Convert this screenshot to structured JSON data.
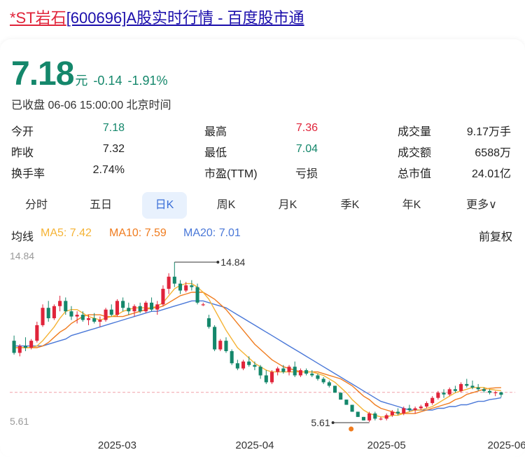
{
  "header": {
    "title_st": "*ST岩石",
    "title_rest": "[600696]A股实时行情 - 百度股市通"
  },
  "quote": {
    "price": "7.18",
    "unit": "元",
    "change": "-0.14",
    "change_pct": "-1.91%",
    "status": "已收盘 06-06 15:00:00 北京时间"
  },
  "stats": [
    {
      "l1": "今开",
      "v1": "7.18",
      "l2": "最高",
      "v2": "7.36",
      "l3": "成交量",
      "v3": "9.17万手"
    },
    {
      "l1": "昨收",
      "v1": "7.32",
      "l2": "最低",
      "v2": "7.04",
      "l3": "成交额",
      "v3": "6588万"
    },
    {
      "l1": "换手率",
      "v1": "2.74%",
      "l2": "市盈(TTM)",
      "v2": "亏损",
      "l3": "总市值",
      "v3": "24.01亿"
    }
  ],
  "tabs": [
    "分时",
    "五日",
    "日K",
    "周K",
    "月K",
    "季K",
    "年K",
    "更多∨"
  ],
  "active_tab": "日K",
  "ma": {
    "label": "均线",
    "ma5": "MA5: 7.42",
    "ma10": "MA10: 7.59",
    "ma20": "MA20: 7.01",
    "adjust": "前复权"
  },
  "colors": {
    "up": "#e0243a",
    "down": "#14876b",
    "ma5": "#f5b335",
    "ma10": "#f07c1f",
    "ma20": "#4a78d8"
  },
  "chart_data": {
    "type": "candlestick",
    "y_axis_top_label": "14.84",
    "y_axis_bottom_label": "5.61",
    "ylim": [
      5.61,
      14.84
    ],
    "max_annotation": "14.84",
    "min_annotation": "5.61",
    "reference_price": 7.32,
    "x_labels": [
      {
        "label": "2025-03",
        "index": 18
      },
      {
        "label": "2025-04",
        "index": 42
      },
      {
        "label": "2025-05",
        "index": 65
      },
      {
        "label": "2025-06",
        "index": 86
      }
    ],
    "ohlc": [
      [
        10.3,
        10.6,
        9.5,
        9.6
      ],
      [
        9.6,
        10.1,
        9.4,
        10.0
      ],
      [
        10.0,
        10.5,
        9.7,
        9.9
      ],
      [
        9.9,
        10.4,
        9.8,
        10.3
      ],
      [
        10.3,
        11.4,
        10.2,
        11.2
      ],
      [
        11.2,
        12.4,
        11.1,
        12.2
      ],
      [
        12.2,
        12.6,
        11.4,
        11.6
      ],
      [
        11.6,
        12.4,
        11.5,
        12.3
      ],
      [
        12.3,
        12.9,
        12.0,
        12.6
      ],
      [
        12.6,
        12.8,
        11.8,
        12.0
      ],
      [
        12.0,
        12.3,
        11.5,
        11.7
      ],
      [
        11.7,
        12.0,
        11.3,
        11.8
      ],
      [
        11.8,
        12.0,
        11.4,
        11.5
      ],
      [
        11.5,
        11.8,
        11.2,
        11.6
      ],
      [
        11.6,
        11.9,
        11.3,
        11.4
      ],
      [
        11.4,
        11.7,
        11.1,
        11.5
      ],
      [
        11.5,
        12.2,
        11.4,
        12.1
      ],
      [
        12.1,
        12.4,
        11.7,
        11.8
      ],
      [
        11.8,
        12.7,
        11.7,
        12.6
      ],
      [
        12.6,
        12.8,
        12.0,
        12.2
      ],
      [
        12.2,
        12.5,
        11.8,
        12.0
      ],
      [
        12.0,
        12.4,
        11.7,
        12.3
      ],
      [
        12.3,
        12.5,
        11.9,
        12.0
      ],
      [
        12.0,
        12.6,
        11.9,
        12.5
      ],
      [
        12.5,
        12.8,
        12.0,
        12.1
      ],
      [
        12.1,
        12.6,
        11.8,
        12.4
      ],
      [
        12.4,
        13.5,
        12.3,
        13.3
      ],
      [
        13.3,
        14.2,
        13.0,
        14.0
      ],
      [
        14.0,
        14.84,
        13.4,
        13.6
      ],
      [
        13.6,
        13.8,
        13.0,
        13.2
      ],
      [
        13.2,
        13.7,
        13.1,
        13.5
      ],
      [
        13.5,
        13.8,
        13.2,
        13.4
      ],
      [
        13.4,
        13.6,
        12.4,
        12.5
      ],
      [
        12.4,
        12.5,
        12.3,
        12.4
      ],
      [
        11.6,
        11.8,
        11.0,
        11.1
      ],
      [
        11.1,
        11.2,
        9.7,
        9.8
      ],
      [
        9.8,
        10.4,
        9.7,
        10.3
      ],
      [
        10.3,
        10.5,
        9.6,
        9.7
      ],
      [
        9.7,
        9.8,
        8.9,
        9.0
      ],
      [
        9.0,
        9.2,
        8.6,
        8.7
      ],
      [
        8.7,
        9.2,
        8.6,
        9.1
      ],
      [
        9.1,
        9.4,
        8.8,
        8.9
      ],
      [
        8.9,
        9.1,
        8.6,
        8.8
      ],
      [
        8.8,
        8.9,
        8.1,
        8.3
      ],
      [
        8.3,
        8.6,
        7.8,
        7.9
      ],
      [
        7.9,
        8.6,
        7.8,
        8.5
      ],
      [
        8.5,
        8.8,
        8.3,
        8.7
      ],
      [
        8.7,
        8.9,
        8.4,
        8.5
      ],
      [
        8.5,
        8.9,
        8.3,
        8.8
      ],
      [
        8.8,
        9.1,
        8.2,
        8.3
      ],
      [
        8.3,
        8.7,
        8.2,
        8.6
      ],
      [
        8.6,
        8.7,
        8.3,
        8.4
      ],
      [
        8.4,
        8.6,
        8.2,
        8.3
      ],
      [
        8.3,
        8.4,
        8.0,
        8.1
      ],
      [
        8.1,
        8.2,
        7.8,
        7.9
      ],
      [
        7.9,
        8.0,
        7.6,
        7.7
      ],
      [
        7.7,
        7.7,
        7.3,
        7.3
      ],
      [
        7.3,
        7.3,
        6.9,
        6.9
      ],
      [
        6.9,
        6.9,
        6.6,
        6.6
      ],
      [
        6.6,
        6.6,
        6.2,
        6.2
      ],
      [
        6.2,
        6.2,
        5.9,
        5.9
      ],
      [
        5.9,
        5.9,
        5.7,
        5.7
      ],
      [
        5.7,
        6.2,
        5.61,
        6.1
      ],
      [
        6.1,
        6.2,
        5.7,
        5.8
      ],
      [
        5.8,
        5.9,
        5.7,
        5.8
      ],
      [
        5.8,
        6.1,
        5.7,
        6.0
      ],
      [
        6.0,
        6.3,
        5.9,
        6.2
      ],
      [
        6.2,
        6.4,
        6.0,
        6.1
      ],
      [
        6.1,
        6.5,
        6.0,
        6.4
      ],
      [
        6.4,
        6.6,
        6.2,
        6.3
      ],
      [
        6.3,
        6.5,
        6.1,
        6.4
      ],
      [
        6.4,
        6.6,
        6.3,
        6.5
      ],
      [
        6.5,
        6.8,
        6.4,
        6.7
      ],
      [
        6.7,
        7.1,
        6.6,
        7.0
      ],
      [
        7.0,
        7.4,
        6.9,
        7.3
      ],
      [
        7.3,
        7.5,
        7.0,
        7.2
      ],
      [
        7.2,
        7.6,
        7.1,
        7.5
      ],
      [
        7.5,
        7.7,
        7.3,
        7.4
      ],
      [
        7.4,
        7.9,
        7.3,
        7.8
      ],
      [
        7.8,
        8.1,
        7.6,
        7.7
      ],
      [
        7.7,
        8.0,
        7.5,
        7.6
      ],
      [
        7.6,
        7.8,
        7.4,
        7.5
      ],
      [
        7.5,
        7.6,
        7.3,
        7.4
      ],
      [
        7.4,
        7.5,
        7.2,
        7.3
      ],
      [
        7.3,
        7.4,
        7.1,
        7.32
      ],
      [
        7.32,
        7.36,
        7.04,
        7.18
      ]
    ],
    "ma5": [
      9.9,
      9.9,
      9.9,
      9.9,
      10.0,
      10.3,
      10.7,
      11.1,
      11.6,
      12.0,
      12.1,
      12.1,
      11.9,
      11.7,
      11.6,
      11.5,
      11.6,
      11.7,
      11.8,
      12.0,
      12.1,
      12.2,
      12.2,
      12.2,
      12.2,
      12.3,
      12.5,
      12.9,
      13.3,
      13.5,
      13.6,
      13.6,
      13.4,
      13.1,
      12.7,
      12.1,
      11.5,
      10.9,
      10.4,
      9.9,
      9.6,
      9.3,
      9.0,
      8.8,
      8.6,
      8.5,
      8.5,
      8.5,
      8.5,
      8.5,
      8.5,
      8.5,
      8.5,
      8.4,
      8.3,
      8.1,
      7.9,
      7.6,
      7.3,
      6.9,
      6.6,
      6.3,
      6.1,
      6.0,
      5.9,
      5.9,
      6.0,
      6.0,
      6.1,
      6.2,
      6.3,
      6.3,
      6.4,
      6.5,
      6.7,
      6.9,
      7.1,
      7.3,
      7.4,
      7.5,
      7.6,
      7.6,
      7.6,
      7.5,
      7.45,
      7.42
    ],
    "ma10": [
      9.9,
      9.9,
      9.9,
      9.9,
      9.9,
      10.0,
      10.2,
      10.5,
      10.8,
      11.0,
      11.3,
      11.5,
      11.7,
      11.8,
      11.8,
      11.8,
      11.7,
      11.7,
      11.7,
      11.7,
      11.8,
      11.9,
      12.0,
      12.1,
      12.2,
      12.2,
      12.3,
      12.5,
      12.7,
      12.9,
      13.0,
      13.1,
      13.1,
      13.1,
      12.9,
      12.7,
      12.4,
      12.1,
      11.7,
      11.3,
      10.9,
      10.5,
      10.1,
      9.8,
      9.5,
      9.2,
      9.0,
      8.8,
      8.7,
      8.6,
      8.5,
      8.5,
      8.5,
      8.5,
      8.4,
      8.3,
      8.2,
      8.1,
      7.9,
      7.7,
      7.4,
      7.1,
      6.9,
      6.6,
      6.4,
      6.3,
      6.2,
      6.1,
      6.1,
      6.1,
      6.1,
      6.2,
      6.3,
      6.4,
      6.5,
      6.6,
      6.7,
      6.9,
      7.0,
      7.2,
      7.3,
      7.4,
      7.5,
      7.55,
      7.58,
      7.59
    ],
    "ma20": [
      10.0,
      10.0,
      10.0,
      10.0,
      10.0,
      10.0,
      10.1,
      10.2,
      10.3,
      10.4,
      10.6,
      10.7,
      10.8,
      10.9,
      11.0,
      11.1,
      11.2,
      11.3,
      11.4,
      11.5,
      11.6,
      11.7,
      11.8,
      11.9,
      12.0,
      12.0,
      12.1,
      12.2,
      12.3,
      12.4,
      12.5,
      12.6,
      12.6,
      12.6,
      12.5,
      12.4,
      12.3,
      12.2,
      12.0,
      11.8,
      11.6,
      11.4,
      11.2,
      11.0,
      10.8,
      10.6,
      10.4,
      10.2,
      10.0,
      9.8,
      9.6,
      9.4,
      9.2,
      9.0,
      8.8,
      8.6,
      8.4,
      8.2,
      8.0,
      7.8,
      7.6,
      7.4,
      7.2,
      7.0,
      6.8,
      6.7,
      6.6,
      6.5,
      6.4,
      6.3,
      6.3,
      6.3,
      6.3,
      6.3,
      6.4,
      6.4,
      6.5,
      6.5,
      6.6,
      6.6,
      6.7,
      6.8,
      6.8,
      6.9,
      6.95,
      7.01
    ]
  }
}
